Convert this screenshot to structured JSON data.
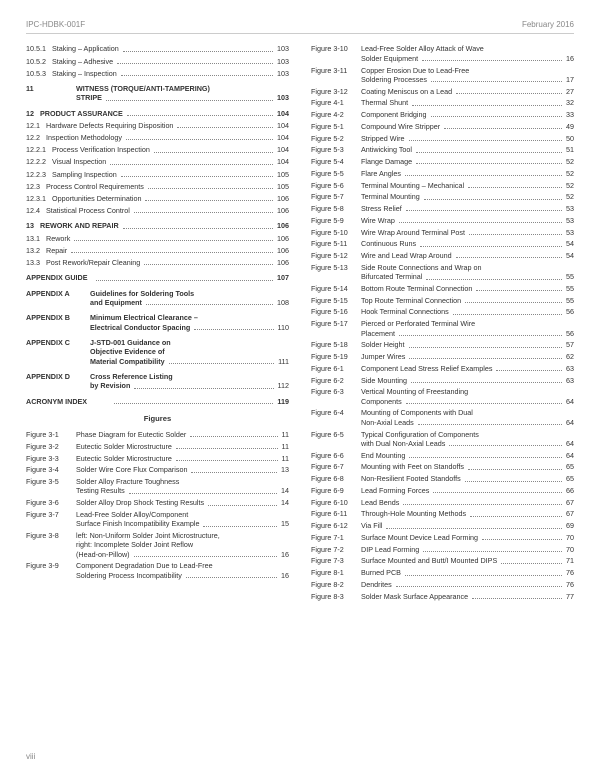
{
  "header": {
    "left": "IPC-HDBK-001F",
    "right": "February 2016"
  },
  "footer": "viii",
  "left_toc": [
    {
      "num": "10.5.1",
      "title": "Staking – Application",
      "pg": "103"
    },
    {
      "num": "10.5.2",
      "title": "Staking – Adhesive",
      "pg": "103"
    },
    {
      "num": "10.5.3",
      "title": "Staking – Inspection",
      "pg": "103"
    },
    {
      "num": "11",
      "title": "WITNESS (TORQUE/ANTI-TAMPERING) STRIPE",
      "pg": "103",
      "bold": true,
      "gap": true,
      "wrap": true
    },
    {
      "num": "12",
      "title": "PRODUCT ASSURANCE",
      "pg": "104",
      "bold": true,
      "gap": true
    },
    {
      "num": "12.1",
      "title": "Hardware Defects Requiring Disposition",
      "pg": "104"
    },
    {
      "num": "12.2",
      "title": "Inspection Methodology",
      "pg": "104"
    },
    {
      "num": "12.2.1",
      "title": "Process Verification Inspection",
      "pg": "104"
    },
    {
      "num": "12.2.2",
      "title": "Visual Inspection",
      "pg": "104"
    },
    {
      "num": "12.2.3",
      "title": "Sampling Inspection",
      "pg": "105"
    },
    {
      "num": "12.3",
      "title": "Process Control Requirements",
      "pg": "105"
    },
    {
      "num": "12.3.1",
      "title": "Opportunities Determination",
      "pg": "106"
    },
    {
      "num": "12.4",
      "title": "Statistical Process Control",
      "pg": "106"
    },
    {
      "num": "13",
      "title": "REWORK AND REPAIR",
      "pg": "106",
      "bold": true,
      "gap": true
    },
    {
      "num": "13.1",
      "title": "Rework",
      "pg": "106"
    },
    {
      "num": "13.2",
      "title": "Repair",
      "pg": "106"
    },
    {
      "num": "13.3",
      "title": "Post Rework/Repair Cleaning",
      "pg": "106"
    }
  ],
  "appendix_guide": {
    "label": "APPENDIX GUIDE",
    "pg": "107"
  },
  "appendices": [
    {
      "num": "APPENDIX A",
      "lines": [
        "Guidelines for Soldering Tools",
        "and Equipment"
      ],
      "pg": "108"
    },
    {
      "num": "APPENDIX B",
      "lines": [
        "Minimum Electrical Clearance –",
        "Electrical Conductor Spacing"
      ],
      "pg": "110"
    },
    {
      "num": "APPENDIX C",
      "lines": [
        "J-STD-001 Guidance on",
        "Objective Evidence of",
        "Material Compatibility"
      ],
      "pg": "111"
    },
    {
      "num": "APPENDIX D",
      "lines": [
        "Cross Reference Listing",
        "by Revision"
      ],
      "pg": "112"
    }
  ],
  "acronym": {
    "label": "ACRONYM INDEX",
    "pg": "119"
  },
  "figures_heading": "Figures",
  "left_figs": [
    {
      "num": "Figure 3-1",
      "lines": [
        "Phase Diagram for Eutectic Solder"
      ],
      "pg": "11"
    },
    {
      "num": "Figure 3-2",
      "lines": [
        "Eutectic Solder Microstructure"
      ],
      "pg": "11"
    },
    {
      "num": "Figure 3-3",
      "lines": [
        "Eutectic Solder Microstructure"
      ],
      "pg": "11"
    },
    {
      "num": "Figure 3-4",
      "lines": [
        "Solder Wire Core Flux Comparison"
      ],
      "pg": "13"
    },
    {
      "num": "Figure 3-5",
      "lines": [
        "Solder Alloy Fracture Toughness",
        "Testing Results"
      ],
      "pg": "14"
    },
    {
      "num": "Figure 3-6",
      "lines": [
        "Solder Alloy Drop Shock Testing Results"
      ],
      "pg": "14"
    },
    {
      "num": "Figure 3-7",
      "lines": [
        "Lead-Free Solder Alloy/Component",
        "Surface Finish Incompatibility Example"
      ],
      "pg": "15"
    },
    {
      "num": "Figure 3-8",
      "lines": [
        "left: Non-Uniform Solder Joint Microstructure,",
        "right: Incomplete Solder Joint Reflow",
        "(Head-on-Pillow)"
      ],
      "pg": "16"
    },
    {
      "num": "Figure 3-9",
      "lines": [
        "Component Degradation Due to Lead-Free",
        "Soldering Process Incompatibility"
      ],
      "pg": "16"
    }
  ],
  "right_figs": [
    {
      "num": "Figure 3-10",
      "lines": [
        "Lead-Free Solder Alloy Attack of Wave",
        "Solder Equipment"
      ],
      "pg": "16"
    },
    {
      "num": "Figure 3-11",
      "lines": [
        "Copper Erosion Due to Lead-Free",
        "Soldering Processes"
      ],
      "pg": "17"
    },
    {
      "num": "Figure 3-12",
      "lines": [
        "Coating Meniscus on a Lead"
      ],
      "pg": "27"
    },
    {
      "num": "Figure 4-1",
      "lines": [
        "Thermal Shunt"
      ],
      "pg": "32"
    },
    {
      "num": "Figure 4-2",
      "lines": [
        "Component Bridging"
      ],
      "pg": "33"
    },
    {
      "num": "Figure 5-1",
      "lines": [
        "Compound Wire Stripper"
      ],
      "pg": "49"
    },
    {
      "num": "Figure 5-2",
      "lines": [
        "Stripped Wire"
      ],
      "pg": "50"
    },
    {
      "num": "Figure 5-3",
      "lines": [
        "Antiwicking Tool"
      ],
      "pg": "51"
    },
    {
      "num": "Figure 5-4",
      "lines": [
        "Flange Damage"
      ],
      "pg": "52"
    },
    {
      "num": "Figure 5-5",
      "lines": [
        "Flare Angles"
      ],
      "pg": "52"
    },
    {
      "num": "Figure 5-6",
      "lines": [
        "Terminal Mounting – Mechanical"
      ],
      "pg": "52"
    },
    {
      "num": "Figure 5-7",
      "lines": [
        "Terminal Mounting"
      ],
      "pg": "52"
    },
    {
      "num": "Figure 5-8",
      "lines": [
        "Stress Relief"
      ],
      "pg": "53"
    },
    {
      "num": "Figure 5-9",
      "lines": [
        "Wire Wrap"
      ],
      "pg": "53"
    },
    {
      "num": "Figure 5-10",
      "lines": [
        "Wire Wrap Around Terminal Post"
      ],
      "pg": "53"
    },
    {
      "num": "Figure 5-11",
      "lines": [
        "Continuous Runs"
      ],
      "pg": "54"
    },
    {
      "num": "Figure 5-12",
      "lines": [
        "Wire and Lead Wrap Around"
      ],
      "pg": "54"
    },
    {
      "num": "Figure 5-13",
      "lines": [
        "Side Route Connections and Wrap on",
        "Bifurcated Terminal"
      ],
      "pg": "55"
    },
    {
      "num": "Figure 5-14",
      "lines": [
        "Bottom Route Terminal Connection"
      ],
      "pg": "55"
    },
    {
      "num": "Figure 5-15",
      "lines": [
        "Top Route Terminal Connection"
      ],
      "pg": "55"
    },
    {
      "num": "Figure 5-16",
      "lines": [
        "Hook Terminal Connections"
      ],
      "pg": "56"
    },
    {
      "num": "Figure 5-17",
      "lines": [
        "Pierced or Perforated Terminal Wire",
        "Placement"
      ],
      "pg": "56"
    },
    {
      "num": "Figure 5-18",
      "lines": [
        "Solder Height"
      ],
      "pg": "57"
    },
    {
      "num": "Figure 5-19",
      "lines": [
        "Jumper Wires"
      ],
      "pg": "62"
    },
    {
      "num": "Figure 6-1",
      "lines": [
        "Component Lead Stress Relief Examples"
      ],
      "pg": "63"
    },
    {
      "num": "Figure 6-2",
      "lines": [
        "Side Mounting"
      ],
      "pg": "63"
    },
    {
      "num": "Figure 6-3",
      "lines": [
        "Vertical Mounting of Freestanding",
        "Components"
      ],
      "pg": "64"
    },
    {
      "num": "Figure 6-4",
      "lines": [
        "Mounting of Components with Dual",
        "Non-Axial Leads"
      ],
      "pg": "64"
    },
    {
      "num": "Figure 6-5",
      "lines": [
        "Typical Configuration of Components",
        "with Dual Non-Axial Leads"
      ],
      "pg": "64"
    },
    {
      "num": "Figure 6-6",
      "lines": [
        "End Mounting"
      ],
      "pg": "64"
    },
    {
      "num": "Figure 6-7",
      "lines": [
        "Mounting with Feet on Standoffs"
      ],
      "pg": "65"
    },
    {
      "num": "Figure 6-8",
      "lines": [
        "Non-Resilient Footed Standoffs"
      ],
      "pg": "65"
    },
    {
      "num": "Figure 6-9",
      "lines": [
        "Lead Forming Forces"
      ],
      "pg": "66"
    },
    {
      "num": "Figure 6-10",
      "lines": [
        "Lead Bends"
      ],
      "pg": "67"
    },
    {
      "num": "Figure 6-11",
      "lines": [
        "Through-Hole Mounting Methods"
      ],
      "pg": "67"
    },
    {
      "num": "Figure 6-12",
      "lines": [
        "Via Fill"
      ],
      "pg": "69"
    },
    {
      "num": "Figure 7-1",
      "lines": [
        "Surface Mount Device Lead Forming"
      ],
      "pg": "70"
    },
    {
      "num": "Figure 7-2",
      "lines": [
        "DIP Lead Forming"
      ],
      "pg": "70"
    },
    {
      "num": "Figure 7-3",
      "lines": [
        "Surface Mounted and Butt/I Mounted DIPS"
      ],
      "pg": "71"
    },
    {
      "num": "Figure 8-1",
      "lines": [
        "Burned PCB"
      ],
      "pg": "76"
    },
    {
      "num": "Figure 8-2",
      "lines": [
        "Dendrites"
      ],
      "pg": "76"
    },
    {
      "num": "Figure 8-3",
      "lines": [
        "Solder Mask Surface Appearance"
      ],
      "pg": "77"
    }
  ]
}
